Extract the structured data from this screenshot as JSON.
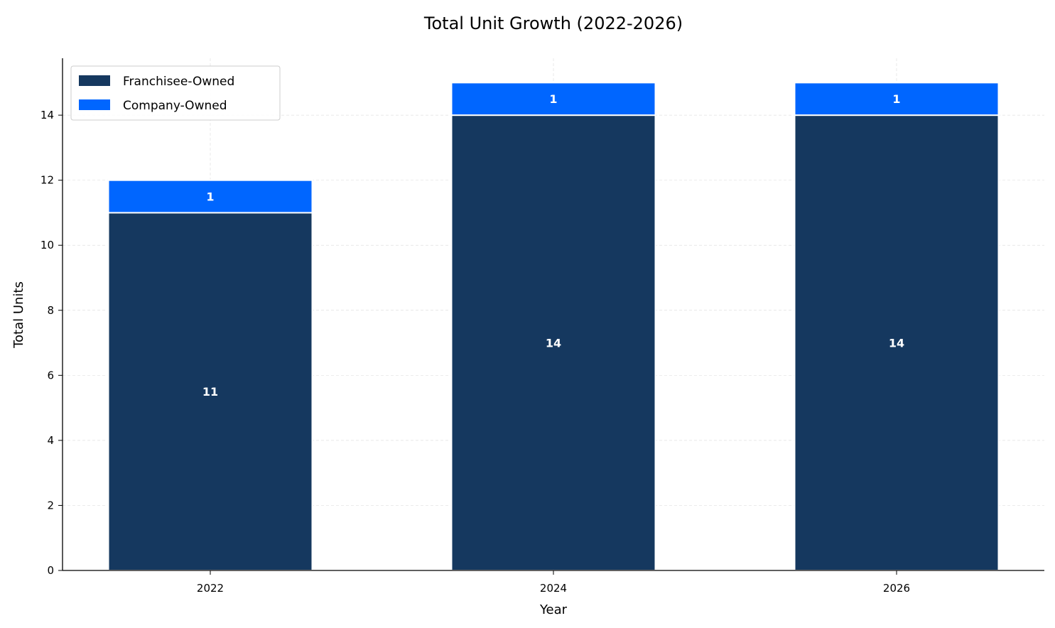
{
  "chart_data": {
    "type": "bar",
    "stacked": true,
    "title": "Total Unit Growth (2022-2026)",
    "xlabel": "Year",
    "ylabel": "Total Units",
    "categories": [
      "2022",
      "2024",
      "2026"
    ],
    "series": [
      {
        "name": "Franchisee-Owned",
        "values": [
          11,
          14,
          14
        ],
        "color": "#15385f"
      },
      {
        "name": "Company-Owned",
        "values": [
          1,
          1,
          1
        ],
        "color": "#0066ff"
      }
    ],
    "ylim": [
      0,
      15.75
    ],
    "yticks": [
      0,
      2,
      4,
      6,
      8,
      10,
      12,
      14
    ],
    "grid": true,
    "legend_position": "top-left",
    "show_value_labels": true
  }
}
